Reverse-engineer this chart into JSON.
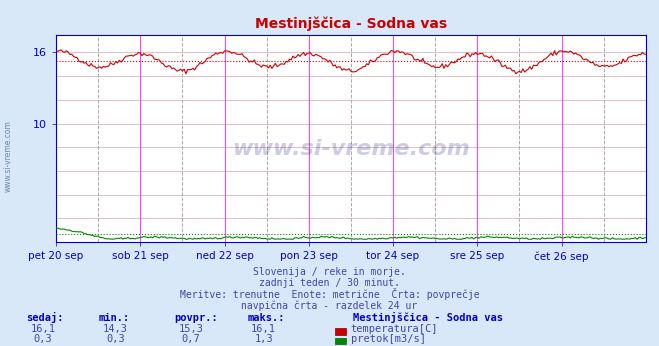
{
  "title": "Mestinjščica - Sodna vas",
  "bg_color": "#d8e8f8",
  "plot_bg_color": "#ffffff",
  "temp_avg": 15.3,
  "temp_min": 14.3,
  "temp_max": 16.1,
  "temp_current": 16.1,
  "flow_avg": 0.7,
  "flow_min": 0.3,
  "flow_max": 1.3,
  "flow_current": 0.3,
  "temp_color": "#cc0000",
  "flow_color": "#008800",
  "grid_color": "#e0c0c0",
  "vline_noon_color": "#ff44ff",
  "vline_midnight_color": "#aaaaaa",
  "title_color": "#cc0000",
  "text_color": "#4444aa",
  "label_color": "#0000cc",
  "axis_color": "#0000cc",
  "x_labels": [
    "pet 20 sep",
    "sob 21 sep",
    "ned 22 sep",
    "pon 23 sep",
    "tor 24 sep",
    "sre 25 sep",
    "čet 26 sep"
  ],
  "x_tick_positions": [
    0,
    48,
    96,
    144,
    192,
    240,
    288
  ],
  "noon_vline_positions": [
    0,
    48,
    96,
    144,
    192,
    240,
    288,
    336
  ],
  "midnight_vline_positions": [
    24,
    72,
    120,
    168,
    216,
    264,
    312
  ],
  "ylim": [
    0,
    17.5
  ],
  "y_grid_values": [
    2,
    4,
    6,
    8,
    10,
    12,
    14,
    16
  ],
  "y_tick_labels_show": [
    10,
    16
  ],
  "subtitle_lines": [
    "Slovenija / reke in morje.",
    "zadnji teden / 30 minut.",
    "Meritve: trenutne  Enote: metrične  Črta: povprečje",
    "navpična črta - razdelek 24 ur"
  ],
  "table_headers": [
    "sedaj:",
    "min.:",
    "povpr.:",
    "maks.:"
  ],
  "table_row1": [
    "16,1",
    "14,3",
    "15,3",
    "16,1"
  ],
  "table_row2": [
    "0,3",
    "0,3",
    "0,7",
    "1,3"
  ],
  "legend_label1": "temperatura[C]",
  "legend_label2": "pretok[m3/s]",
  "station_label": "Mestinjščica - Sodna vas",
  "watermark": "www.si-vreme.com"
}
